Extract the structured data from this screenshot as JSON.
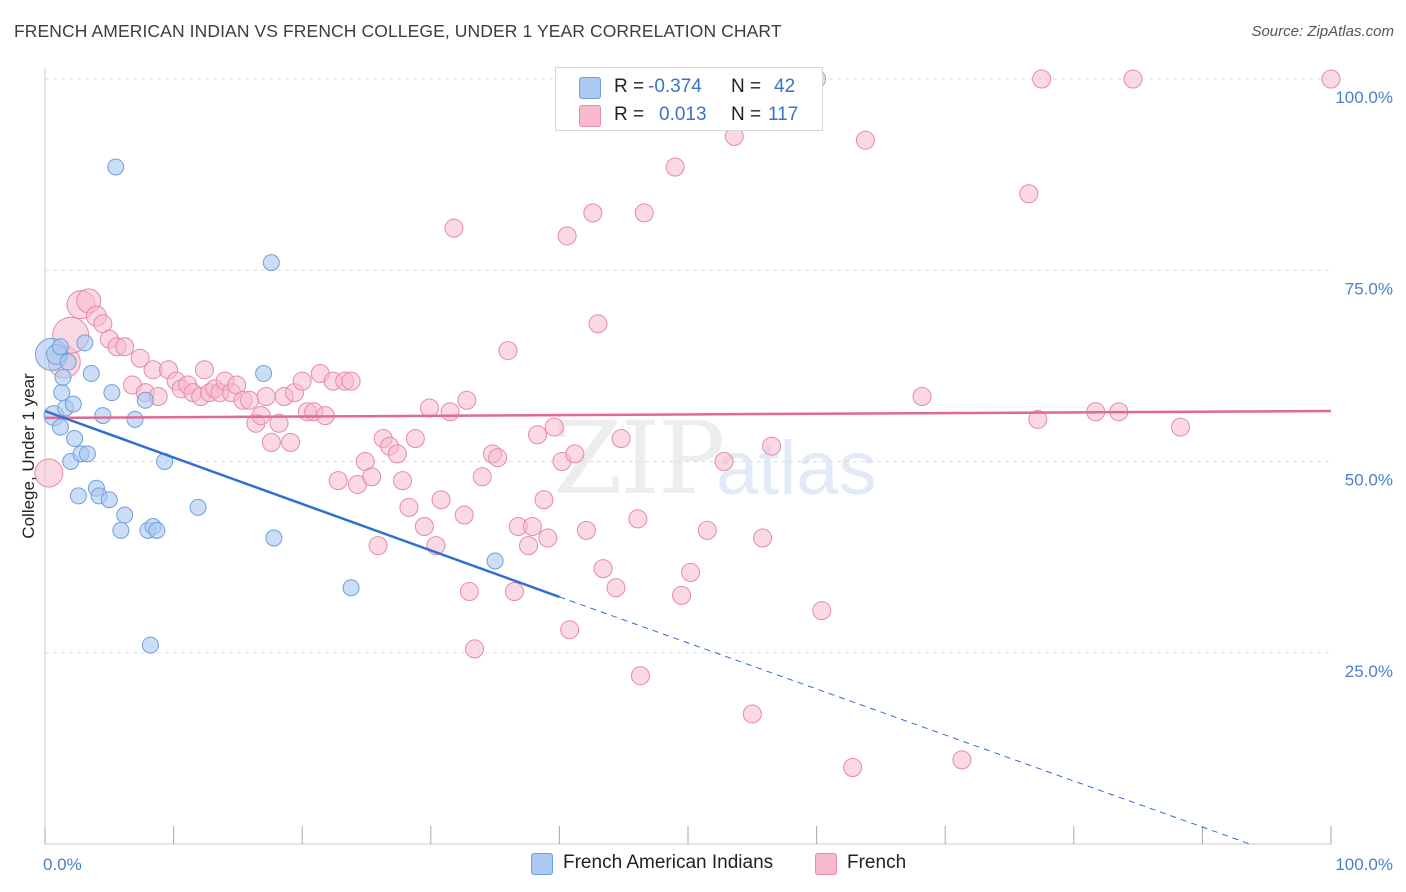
{
  "title": "FRENCH AMERICAN INDIAN VS FRENCH COLLEGE, UNDER 1 YEAR CORRELATION CHART",
  "source": "Source: ZipAtlas.com",
  "watermark": {
    "zip": "ZIP",
    "atlas": "atlas"
  },
  "legend_top": {
    "rows": [
      {
        "r_label": "R =",
        "r_value": "-0.374",
        "n_label": "N =",
        "n_value": "42"
      },
      {
        "r_label": "R =",
        "r_value": "0.013",
        "n_label": "N =",
        "n_value": "117"
      }
    ]
  },
  "legend_bottom": [
    "French American Indians",
    "French"
  ],
  "colors": {
    "blue_fill": "#aac8f0",
    "blue_stroke": "#6f9fdc",
    "blue_line": "#2f6fd0",
    "pink_fill": "#f7b9cc",
    "pink_stroke": "#e68aa8",
    "pink_line": "#e06a93",
    "grid": "#dddddd",
    "axis_text": "#4a7fcf"
  },
  "chart_data": {
    "type": "scatter",
    "title": "FRENCH AMERICAN INDIAN VS FRENCH COLLEGE, UNDER 1 YEAR CORRELATION CHART",
    "xlabel": "",
    "ylabel": "College, Under 1 year",
    "xlim": [
      0,
      100
    ],
    "ylim": [
      0,
      100
    ],
    "x_tick_labels": [
      "0.0%",
      "100.0%"
    ],
    "y_tick_labels": [
      "25.0%",
      "50.0%",
      "75.0%",
      "100.0%"
    ],
    "y_ticks": [
      25,
      50,
      75,
      100
    ],
    "series": [
      {
        "name": "French American Indians",
        "r": -0.374,
        "n": 42,
        "trend": {
          "x0": 0,
          "y0": 56.6,
          "x1": 40,
          "y1": 32.3,
          "dash_to_x": 100,
          "dash_to_y": -3.8
        },
        "points": [
          [
            0.5,
            64,
            16
          ],
          [
            0.7,
            56,
            10
          ],
          [
            0.9,
            64,
            10
          ],
          [
            1.2,
            54.5,
            8
          ],
          [
            1.2,
            65,
            8
          ],
          [
            1.3,
            59,
            8
          ],
          [
            1.4,
            61,
            8
          ],
          [
            1.6,
            57,
            8
          ],
          [
            1.8,
            63,
            8
          ],
          [
            2,
            50,
            8
          ],
          [
            2.2,
            57.5,
            8
          ],
          [
            2.3,
            53,
            8
          ],
          [
            2.6,
            45.5,
            8
          ],
          [
            2.8,
            51,
            8
          ],
          [
            3.1,
            65.5,
            8
          ],
          [
            3.3,
            51,
            8
          ],
          [
            3.6,
            61.5,
            8
          ],
          [
            4,
            46.5,
            8
          ],
          [
            4.2,
            45.5,
            8
          ],
          [
            4.5,
            56,
            8
          ],
          [
            5,
            45,
            8
          ],
          [
            5.2,
            59,
            8
          ],
          [
            5.5,
            88.5,
            8
          ],
          [
            5.9,
            41,
            8
          ],
          [
            6.2,
            43,
            8
          ],
          [
            7,
            55.5,
            8
          ],
          [
            7.8,
            58,
            8
          ],
          [
            8,
            41,
            8
          ],
          [
            8.2,
            26,
            8
          ],
          [
            8.4,
            41.5,
            8
          ],
          [
            8.7,
            41,
            8
          ],
          [
            9.3,
            50,
            8
          ],
          [
            11.9,
            44,
            8
          ],
          [
            17,
            61.5,
            8
          ],
          [
            17.6,
            76,
            8
          ],
          [
            17.8,
            40,
            8
          ],
          [
            23.8,
            33.5,
            8
          ],
          [
            35,
            37,
            8
          ]
        ]
      },
      {
        "name": "French",
        "r": 0.013,
        "n": 117,
        "trend": {
          "x0": 0,
          "y0": 55.7,
          "x1": 100,
          "y1": 56.6
        },
        "points": [
          [
            0.3,
            48.5,
            14
          ],
          [
            1.5,
            63,
            16
          ],
          [
            2,
            66.5,
            18
          ],
          [
            2.8,
            70.5,
            14
          ],
          [
            3.4,
            71,
            12
          ],
          [
            4,
            69,
            10
          ],
          [
            4.5,
            68,
            9
          ],
          [
            5,
            66,
            9
          ],
          [
            5.6,
            65,
            9
          ],
          [
            6.2,
            65,
            9
          ],
          [
            6.8,
            60,
            9
          ],
          [
            7.4,
            63.5,
            9
          ],
          [
            7.8,
            59,
            9
          ],
          [
            8.4,
            62,
            9
          ],
          [
            8.8,
            58.5,
            9
          ],
          [
            9.6,
            62,
            9
          ],
          [
            10.2,
            60.5,
            9
          ],
          [
            10.6,
            59.5,
            9
          ],
          [
            11.1,
            60,
            9
          ],
          [
            11.5,
            59,
            9
          ],
          [
            12.1,
            58.5,
            9
          ],
          [
            12.4,
            62,
            9
          ],
          [
            12.8,
            59,
            9
          ],
          [
            13.2,
            59.5,
            9
          ],
          [
            13.6,
            59,
            9
          ],
          [
            14,
            60.5,
            9
          ],
          [
            14.5,
            59,
            9
          ],
          [
            14.9,
            60,
            9
          ],
          [
            15.4,
            58,
            9
          ],
          [
            15.9,
            58,
            9
          ],
          [
            16.4,
            55,
            9
          ],
          [
            16.8,
            56,
            9
          ],
          [
            17.2,
            58.5,
            9
          ],
          [
            17.6,
            52.5,
            9
          ],
          [
            18.2,
            55,
            9
          ],
          [
            18.6,
            58.5,
            9
          ],
          [
            19.1,
            52.5,
            9
          ],
          [
            19.4,
            59,
            9
          ],
          [
            20,
            60.5,
            9
          ],
          [
            20.4,
            56.5,
            9
          ],
          [
            20.9,
            56.5,
            9
          ],
          [
            21.4,
            61.5,
            9
          ],
          [
            21.8,
            56,
            9
          ],
          [
            22.4,
            60.5,
            9
          ],
          [
            22.8,
            47.5,
            9
          ],
          [
            23.3,
            60.5,
            9
          ],
          [
            23.8,
            60.5,
            9
          ],
          [
            24.3,
            47,
            9
          ],
          [
            24.9,
            50,
            9
          ],
          [
            25.4,
            48,
            9
          ],
          [
            25.9,
            39,
            9
          ],
          [
            26.3,
            53,
            9
          ],
          [
            26.8,
            52,
            9
          ],
          [
            27.4,
            51,
            9
          ],
          [
            27.8,
            47.5,
            9
          ],
          [
            28.3,
            44,
            9
          ],
          [
            28.8,
            53,
            9
          ],
          [
            29.5,
            41.5,
            9
          ],
          [
            29.9,
            57,
            9
          ],
          [
            30.4,
            39,
            9
          ],
          [
            30.8,
            45,
            9
          ],
          [
            31.5,
            56.5,
            9
          ],
          [
            31.8,
            80.5,
            9
          ],
          [
            32.6,
            43,
            9
          ],
          [
            32.8,
            58,
            9
          ],
          [
            33,
            33,
            9
          ],
          [
            33.4,
            25.5,
            9
          ],
          [
            34,
            48,
            9
          ],
          [
            34.8,
            51,
            9
          ],
          [
            35.2,
            50.5,
            9
          ],
          [
            36,
            64.5,
            9
          ],
          [
            36.5,
            33,
            9
          ],
          [
            36.8,
            41.5,
            9
          ],
          [
            37.6,
            39,
            9
          ],
          [
            37.9,
            41.5,
            9
          ],
          [
            38.3,
            53.5,
            9
          ],
          [
            38.8,
            45,
            9
          ],
          [
            39.1,
            40,
            9
          ],
          [
            39.6,
            54.5,
            9
          ],
          [
            40.2,
            50,
            9
          ],
          [
            40.6,
            79.5,
            9
          ],
          [
            40.8,
            28,
            9
          ],
          [
            41.2,
            51,
            9
          ],
          [
            42.1,
            41,
            9
          ],
          [
            42.6,
            82.5,
            9
          ],
          [
            43,
            68,
            9
          ],
          [
            43.4,
            36,
            9
          ],
          [
            44.4,
            33.5,
            9
          ],
          [
            44.8,
            53,
            9
          ],
          [
            46.1,
            42.5,
            9
          ],
          [
            46.3,
            22,
            9
          ],
          [
            46.6,
            82.5,
            9
          ],
          [
            49,
            88.5,
            9
          ],
          [
            49.5,
            32.5,
            9
          ],
          [
            50.2,
            35.5,
            9
          ],
          [
            51.5,
            41,
            9
          ],
          [
            52.8,
            50,
            9
          ],
          [
            53.6,
            92.5,
            9
          ],
          [
            55,
            17,
            9
          ],
          [
            55.8,
            40,
            9
          ],
          [
            56.5,
            52,
            9
          ],
          [
            60.4,
            30.5,
            9
          ],
          [
            62.8,
            10,
            9
          ],
          [
            63.8,
            92,
            9
          ],
          [
            68.2,
            58.5,
            9
          ],
          [
            71.3,
            11,
            9
          ],
          [
            76.5,
            85,
            9
          ],
          [
            77.2,
            55.5,
            9
          ],
          [
            77.5,
            100,
            9
          ],
          [
            81.7,
            56.5,
            9
          ],
          [
            83.5,
            56.5,
            9
          ],
          [
            84.6,
            100,
            9
          ],
          [
            88.3,
            54.5,
            9
          ],
          [
            100,
            100,
            9
          ],
          [
            60,
            100,
            9
          ]
        ]
      }
    ]
  }
}
